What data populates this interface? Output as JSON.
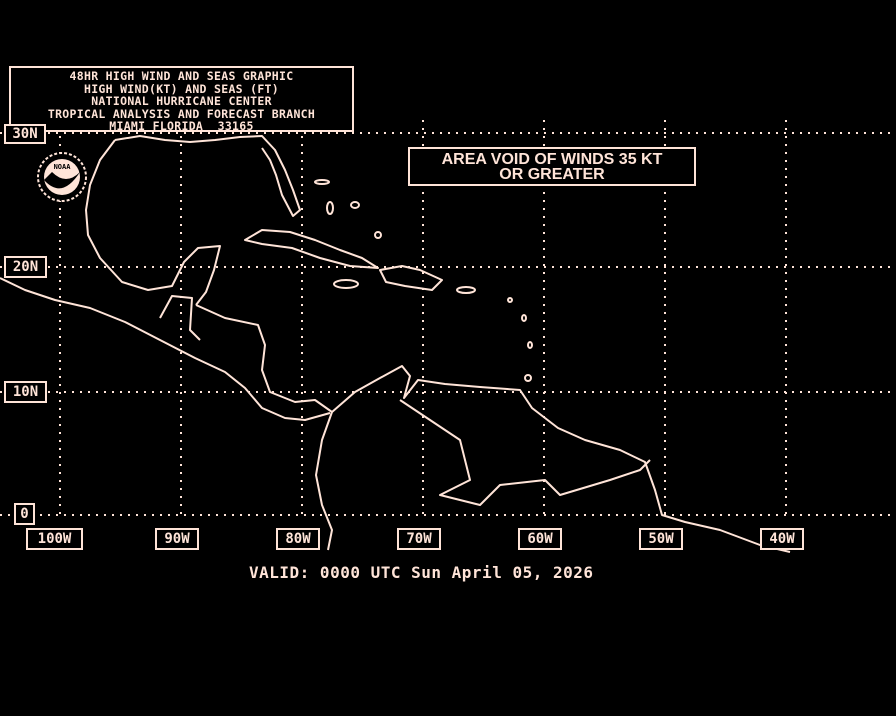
{
  "title_box": {
    "lines": [
      "48HR HIGH WIND AND SEAS GRAPHIC",
      "HIGH WIND(KT) AND SEAS (FT)",
      "NATIONAL HURRICANE CENTER",
      "TROPICAL ANALYSIS AND FORECAST BRANCH",
      "MIAMI FLORIDA  33165"
    ]
  },
  "logo": {
    "text": "NOAA"
  },
  "legend": {
    "line1": "AREA VOID OF WINDS 35 KT",
    "line2": "OR GREATER"
  },
  "latitude_labels": [
    "30N",
    "20N",
    "10N",
    "0"
  ],
  "longitude_labels": [
    "100W",
    "90W",
    "80W",
    "70W",
    "60W",
    "50W",
    "40W"
  ],
  "valid_time": "VALID: 0000 UTC Sun April 05, 2026",
  "colors": {
    "background": "#000000",
    "foreground": "#ffe4d8"
  }
}
